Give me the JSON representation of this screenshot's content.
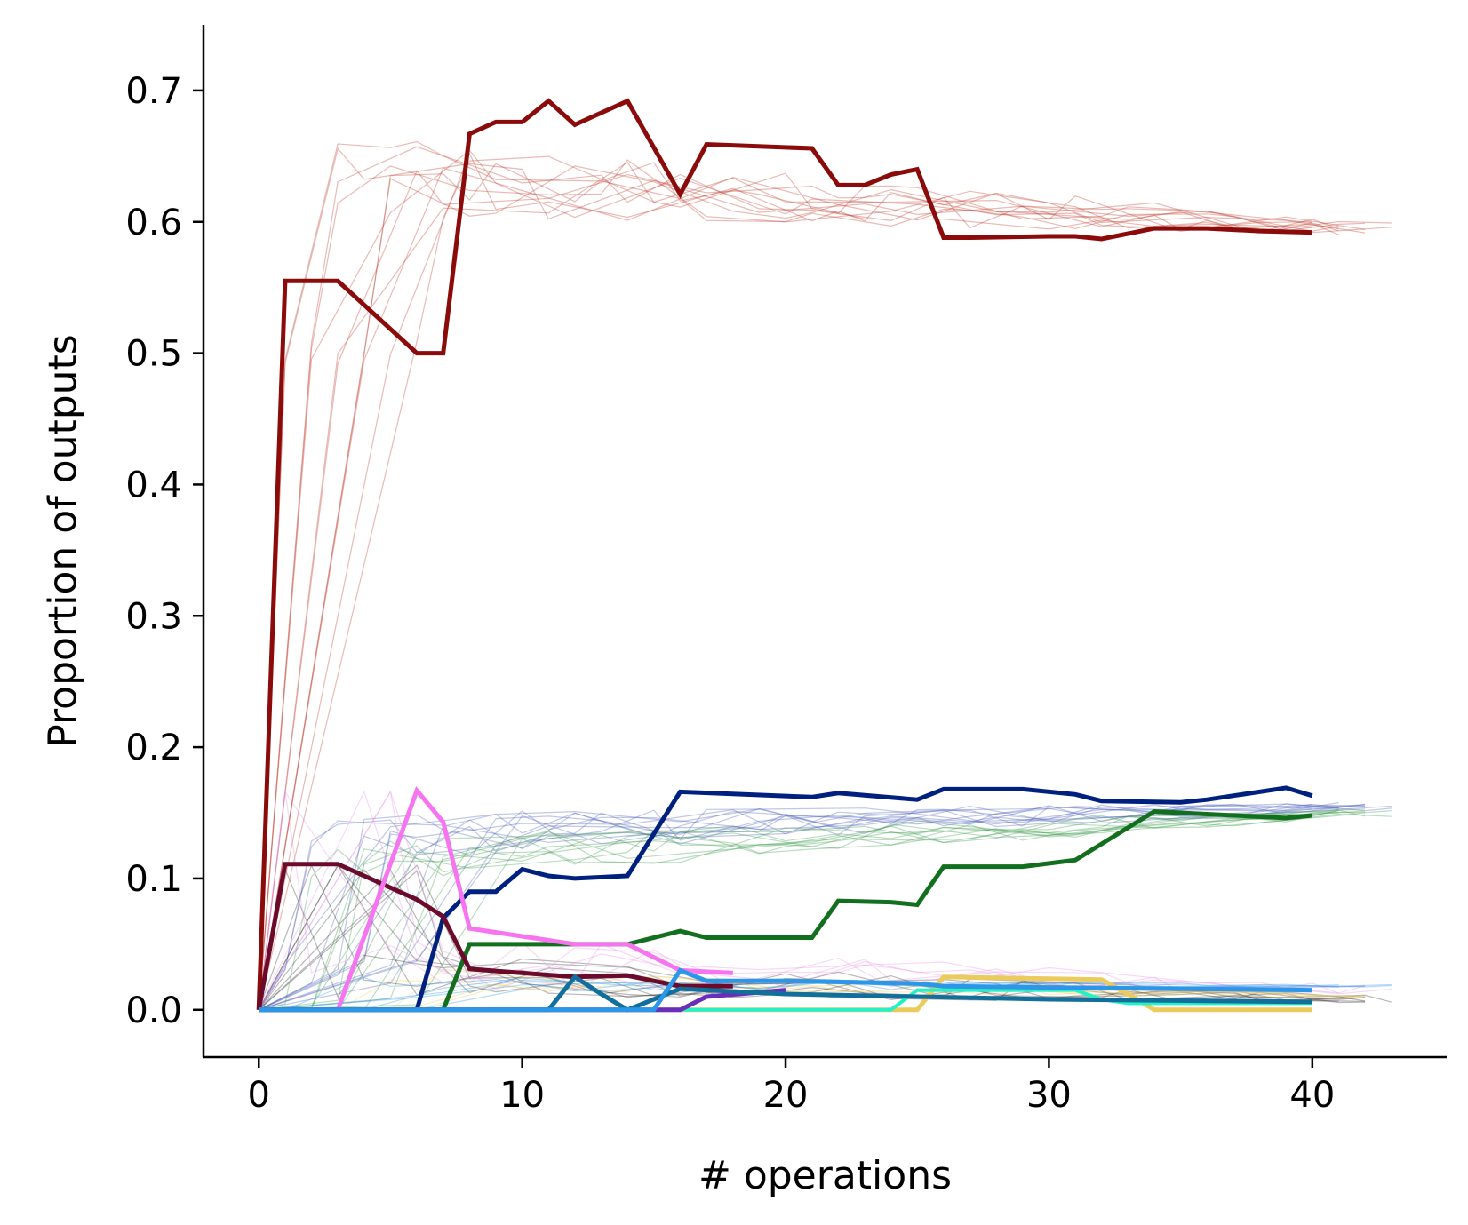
{
  "chart_data": {
    "type": "line",
    "title": "",
    "xlabel": "# operations",
    "ylabel": "Proportion of outputs",
    "xlim": [
      -2.1,
      45.1
    ],
    "ylim": [
      -0.036,
      0.75
    ],
    "xticks": [
      0,
      10,
      20,
      30,
      40
    ],
    "yticks": [
      0.0,
      0.1,
      0.2,
      0.3,
      0.4,
      0.5,
      0.6,
      0.7
    ],
    "xtick_labels": [
      "0",
      "10",
      "20",
      "30",
      "40"
    ],
    "ytick_labels": [
      "0.0",
      "0.1",
      "0.2",
      "0.3",
      "0.4",
      "0.5",
      "0.6",
      "0.7"
    ],
    "grid": false,
    "legend": "none",
    "series": [
      {
        "color": "#8B0A0A",
        "width": 5,
        "x": [
          0,
          1,
          3,
          6,
          7,
          8,
          9,
          10,
          11,
          12,
          14,
          16,
          17,
          21,
          22,
          23,
          24,
          25,
          26,
          27,
          30,
          31,
          32,
          34,
          36,
          38,
          40
        ],
        "y": [
          0,
          0.555,
          0.555,
          0.5,
          0.5,
          0.667,
          0.676,
          0.676,
          0.692,
          0.674,
          0.692,
          0.621,
          0.659,
          0.656,
          0.628,
          0.628,
          0.636,
          0.64,
          0.588,
          0.588,
          0.589,
          0.589,
          0.587,
          0.595,
          0.595,
          0.593,
          0.592
        ]
      },
      {
        "color": "#00207F",
        "width": 5,
        "x": [
          0,
          6,
          7,
          8,
          9,
          10,
          11,
          12,
          14,
          16,
          21,
          22,
          25,
          26,
          29,
          31,
          32,
          35,
          36,
          39,
          40
        ],
        "y": [
          0,
          0,
          0.07,
          0.09,
          0.09,
          0.107,
          0.102,
          0.1,
          0.102,
          0.166,
          0.162,
          0.165,
          0.16,
          0.168,
          0.168,
          0.164,
          0.159,
          0.158,
          0.16,
          0.169,
          0.163
        ]
      },
      {
        "color": "#126F1E",
        "width": 5,
        "x": [
          0,
          7,
          8,
          14,
          16,
          17,
          21,
          22,
          24,
          25,
          26,
          29,
          31,
          34,
          39,
          40
        ],
        "y": [
          0,
          0,
          0.05,
          0.05,
          0.06,
          0.055,
          0.055,
          0.083,
          0.082,
          0.08,
          0.109,
          0.109,
          0.114,
          0.151,
          0.146,
          0.148
        ]
      },
      {
        "color": "#6B0A2A",
        "width": 5,
        "x": [
          0,
          1,
          3,
          6,
          7,
          8,
          12,
          14,
          16,
          18
        ],
        "y": [
          0,
          0.111,
          0.111,
          0.084,
          0.071,
          0.031,
          0.025,
          0.026,
          0.018,
          0.018
        ]
      },
      {
        "color": "#F774F0",
        "width": 5,
        "x": [
          0,
          3,
          6,
          7,
          8,
          10,
          12,
          14,
          16,
          18
        ],
        "y": [
          0,
          0,
          0.167,
          0.143,
          0.062,
          0.056,
          0.05,
          0.05,
          0.03,
          0.028
        ]
      },
      {
        "color": "#EBCB5B",
        "width": 5,
        "x": [
          0,
          16,
          25,
          26,
          32,
          33,
          34,
          40
        ],
        "y": [
          0,
          0,
          0,
          0.025,
          0.023,
          0.012,
          0,
          0
        ]
      },
      {
        "color": "#26F0C8",
        "width": 4,
        "x": [
          0,
          24,
          25,
          31,
          32,
          33,
          40
        ],
        "y": [
          0,
          0,
          0.015,
          0.015,
          0.008,
          0.005,
          0.005
        ]
      },
      {
        "color": "#6A2FB8",
        "width": 5,
        "x": [
          0,
          14,
          16,
          17,
          20
        ],
        "y": [
          0,
          0,
          0,
          0.01,
          0.015
        ]
      },
      {
        "color": "#126F9C",
        "width": 5,
        "x": [
          0,
          11,
          12,
          13,
          14,
          16,
          20,
          25,
          30,
          40
        ],
        "y": [
          0,
          0,
          0.025,
          0.012,
          0,
          0.016,
          0.012,
          0.01,
          0.008,
          0.006
        ]
      },
      {
        "color": "#2C96E8",
        "width": 5,
        "x": [
          0,
          15,
          16,
          17,
          20,
          25,
          26,
          30,
          35,
          40
        ],
        "y": [
          0,
          0,
          0.03,
          0.022,
          0.022,
          0.02,
          0.018,
          0.017,
          0.016,
          0.015
        ]
      }
    ]
  }
}
